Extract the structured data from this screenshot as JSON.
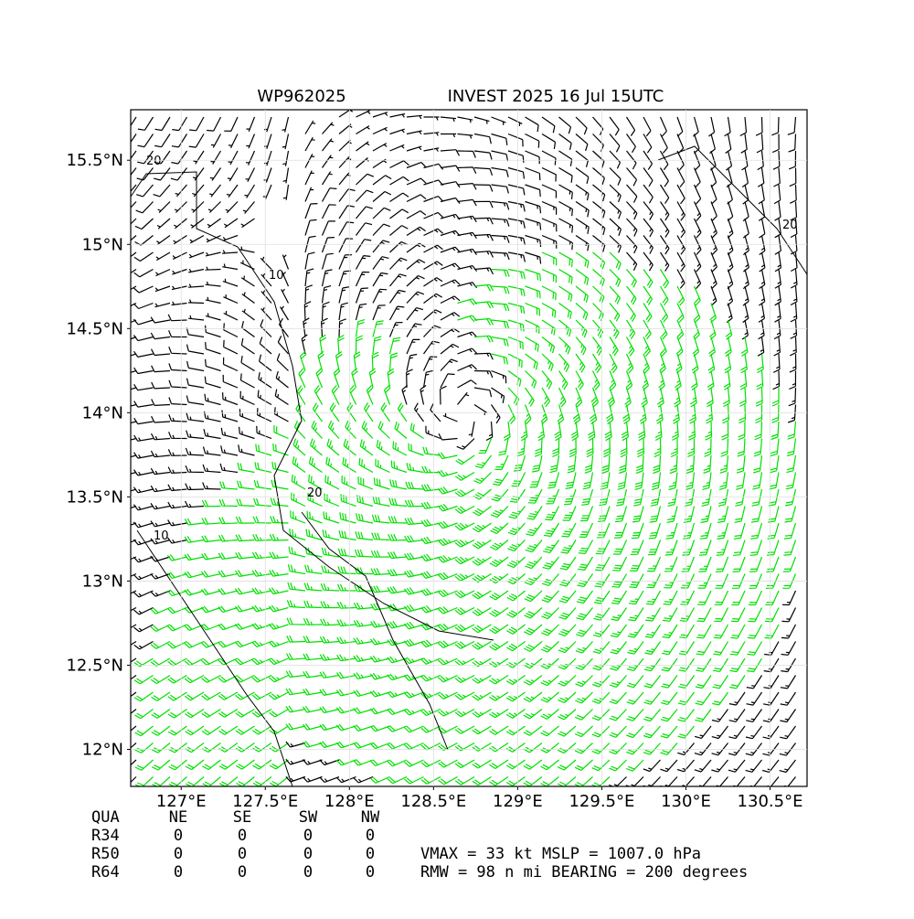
{
  "map": {
    "title_left": "WP962025",
    "title_right": "INVEST 2025 16 Jul 15UTC",
    "xlim": [
      126.7,
      130.72
    ],
    "ylim": [
      11.78,
      15.8
    ],
    "xticks": [
      {
        "value": 127,
        "label": "127°E"
      },
      {
        "value": 127.5,
        "label": "127.5°E"
      },
      {
        "value": 128,
        "label": "128°E"
      },
      {
        "value": 128.5,
        "label": "128.5°E"
      },
      {
        "value": 129,
        "label": "129°E"
      },
      {
        "value": 129.5,
        "label": "129.5°E"
      },
      {
        "value": 130,
        "label": "130°E"
      },
      {
        "value": 130.5,
        "label": "130.5°E"
      }
    ],
    "yticks": [
      {
        "value": 12,
        "label": "12°N"
      },
      {
        "value": 12.5,
        "label": "12.5°N"
      },
      {
        "value": 13,
        "label": "13°N"
      },
      {
        "value": 13.5,
        "label": "13.5°N"
      },
      {
        "value": 14,
        "label": "14°N"
      },
      {
        "value": 14.5,
        "label": "14.5°N"
      },
      {
        "value": 15,
        "label": "15°N"
      },
      {
        "value": 15.5,
        "label": "15.5°N"
      }
    ],
    "contour_labels": [
      "20",
      "10",
      "20",
      "10",
      "20"
    ]
  },
  "table": {
    "header": [
      "QUA",
      "NE",
      "SE",
      "SW",
      "NW"
    ],
    "rows": [
      [
        "R34",
        "0",
        "0",
        "0",
        "0"
      ],
      [
        "R50",
        "0",
        "0",
        "0",
        "0"
      ],
      [
        "R64",
        "0",
        "0",
        "0",
        "0"
      ]
    ]
  },
  "info": [
    "VMAX =  33 kt MSLP = 1007.0 hPa",
    "RMW =  98 n mi BEARING = 200 degrees"
  ]
}
